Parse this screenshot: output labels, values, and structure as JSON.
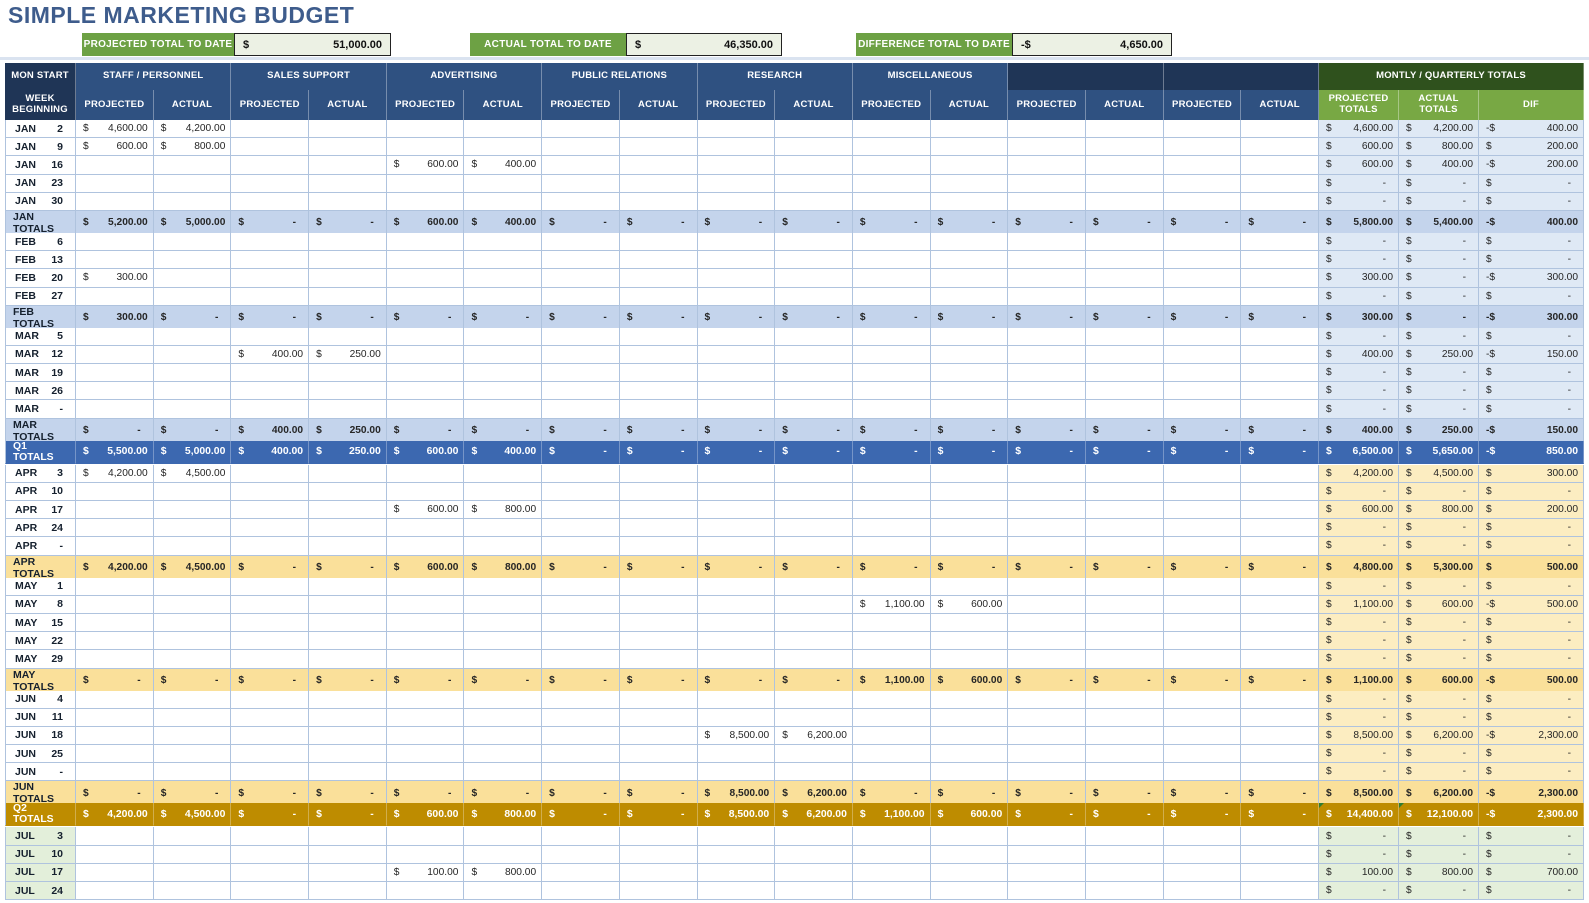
{
  "title": "SIMPLE MARKETING BUDGET",
  "summary": [
    {
      "label": "PROJECTED TOTAL TO DATE",
      "currency": "$",
      "value": "51,000.00"
    },
    {
      "label": "ACTUAL TOTAL TO DATE",
      "currency": "$",
      "value": "46,350.00"
    },
    {
      "label": "DIFFERENCE TOTAL TO DATE",
      "currency": "-$",
      "value": "4,650.00"
    }
  ],
  "colors": {
    "title_text": "#3E5C8C",
    "summary_green": "#6DA144",
    "summary_value_bg": "#ECF1E4",
    "header_dark_navy": "#1F3556",
    "header_blue": "#2F5181",
    "header_dark_green": "#2F511D",
    "header_green": "#78A844",
    "q1_light": "#DFE9F5",
    "q1_month_total": "#C4D4EC",
    "q1_quarter_total": "#3C68B0",
    "q2_light": "#FCEDC1",
    "q2_month_total": "#FAE09A",
    "q2_quarter_total": "#BE8C00",
    "q3_light": "#E4EFDB",
    "grid_border": "#AFC3DE"
  },
  "table": {
    "corner_header": "MON START",
    "week_header": "WEEK BEGINNING",
    "groups": [
      "STAFF / PERSONNEL",
      "SALES SUPPORT",
      "ADVERTISING",
      "PUBLIC RELATIONS",
      "RESEARCH",
      "MISCELLANEOUS",
      "",
      ""
    ],
    "sub_headers": [
      "PROJECTED",
      "ACTUAL"
    ],
    "totals_header": "MONTLY / QUARTERLY TOTALS",
    "totals_sub_headers": [
      "PROJECTED TOTALS",
      "ACTUAL TOTALS",
      "DIF"
    ],
    "rows": [
      {
        "type": "data",
        "month": "JAN",
        "day": "2",
        "q": 1,
        "cells": [
          "4,600.00",
          "4,200.00",
          "",
          "",
          "",
          "",
          "",
          "",
          "",
          "",
          "",
          "",
          "",
          "",
          "",
          ""
        ],
        "totals": [
          "4,600.00",
          "4,200.00",
          "-400.00"
        ]
      },
      {
        "type": "data",
        "month": "JAN",
        "day": "9",
        "q": 1,
        "cells": [
          "600.00",
          "800.00",
          "",
          "",
          "",
          "",
          "",
          "",
          "",
          "",
          "",
          "",
          "",
          "",
          "",
          ""
        ],
        "totals": [
          "600.00",
          "800.00",
          "200.00"
        ]
      },
      {
        "type": "data",
        "month": "JAN",
        "day": "16",
        "q": 1,
        "cells": [
          "",
          "",
          "",
          "",
          "600.00",
          "400.00",
          "",
          "",
          "",
          "",
          "",
          "",
          "",
          "",
          "",
          ""
        ],
        "totals": [
          "600.00",
          "400.00",
          "-200.00"
        ]
      },
      {
        "type": "data",
        "month": "JAN",
        "day": "23",
        "q": 1,
        "cells": [
          "",
          "",
          "",
          "",
          "",
          "",
          "",
          "",
          "",
          "",
          "",
          "",
          "",
          "",
          "",
          ""
        ],
        "totals": [
          "-",
          "-",
          "-"
        ]
      },
      {
        "type": "data",
        "month": "JAN",
        "day": "30",
        "q": 1,
        "cells": [
          "",
          "",
          "",
          "",
          "",
          "",
          "",
          "",
          "",
          "",
          "",
          "",
          "",
          "",
          "",
          ""
        ],
        "totals": [
          "-",
          "-",
          "-"
        ]
      },
      {
        "type": "month_total",
        "label": "JAN TOTALS",
        "q": 1,
        "cells": [
          "5,200.00",
          "5,000.00",
          "-",
          "-",
          "600.00",
          "400.00",
          "-",
          "-",
          "-",
          "-",
          "-",
          "-",
          "-",
          "-",
          "-",
          "-"
        ],
        "totals": [
          "5,800.00",
          "5,400.00",
          "-400.00"
        ]
      },
      {
        "type": "spacer"
      },
      {
        "type": "data",
        "month": "FEB",
        "day": "6",
        "q": 1,
        "cells": [
          "",
          "",
          "",
          "",
          "",
          "",
          "",
          "",
          "",
          "",
          "",
          "",
          "",
          "",
          "",
          ""
        ],
        "totals": [
          "-",
          "-",
          "-"
        ]
      },
      {
        "type": "data",
        "month": "FEB",
        "day": "13",
        "q": 1,
        "cells": [
          "",
          "",
          "",
          "",
          "",
          "",
          "",
          "",
          "",
          "",
          "",
          "",
          "",
          "",
          "",
          ""
        ],
        "totals": [
          "-",
          "-",
          "-"
        ]
      },
      {
        "type": "data",
        "month": "FEB",
        "day": "20",
        "q": 1,
        "cells": [
          "300.00",
          "",
          "",
          "",
          "",
          "",
          "",
          "",
          "",
          "",
          "",
          "",
          "",
          "",
          "",
          ""
        ],
        "totals": [
          "300.00",
          "-",
          "-300.00"
        ]
      },
      {
        "type": "data",
        "month": "FEB",
        "day": "27",
        "q": 1,
        "cells": [
          "",
          "",
          "",
          "",
          "",
          "",
          "",
          "",
          "",
          "",
          "",
          "",
          "",
          "",
          "",
          ""
        ],
        "totals": [
          "-",
          "-",
          "-"
        ]
      },
      {
        "type": "month_total",
        "label": "FEB TOTALS",
        "q": 1,
        "cells": [
          "300.00",
          "-",
          "-",
          "-",
          "-",
          "-",
          "-",
          "-",
          "-",
          "-",
          "-",
          "-",
          "-",
          "-",
          "-",
          "-"
        ],
        "totals": [
          "300.00",
          "-",
          "-300.00"
        ]
      },
      {
        "type": "spacer"
      },
      {
        "type": "data",
        "month": "MAR",
        "day": "5",
        "q": 1,
        "cells": [
          "",
          "",
          "",
          "",
          "",
          "",
          "",
          "",
          "",
          "",
          "",
          "",
          "",
          "",
          "",
          ""
        ],
        "totals": [
          "-",
          "-",
          "-"
        ]
      },
      {
        "type": "data",
        "month": "MAR",
        "day": "12",
        "q": 1,
        "cells": [
          "",
          "",
          "400.00",
          "250.00",
          "",
          "",
          "",
          "",
          "",
          "",
          "",
          "",
          "",
          "",
          "",
          ""
        ],
        "totals": [
          "400.00",
          "250.00",
          "-150.00"
        ]
      },
      {
        "type": "data",
        "month": "MAR",
        "day": "19",
        "q": 1,
        "cells": [
          "",
          "",
          "",
          "",
          "",
          "",
          "",
          "",
          "",
          "",
          "",
          "",
          "",
          "",
          "",
          ""
        ],
        "totals": [
          "-",
          "-",
          "-"
        ]
      },
      {
        "type": "data",
        "month": "MAR",
        "day": "26",
        "q": 1,
        "cells": [
          "",
          "",
          "",
          "",
          "",
          "",
          "",
          "",
          "",
          "",
          "",
          "",
          "",
          "",
          "",
          ""
        ],
        "totals": [
          "-",
          "-",
          "-"
        ]
      },
      {
        "type": "data",
        "month": "MAR",
        "day": "-",
        "q": 1,
        "cells": [
          "",
          "",
          "",
          "",
          "",
          "",
          "",
          "",
          "",
          "",
          "",
          "",
          "",
          "",
          "",
          ""
        ],
        "totals": [
          "-",
          "-",
          "-"
        ]
      },
      {
        "type": "month_total",
        "label": "MAR TOTALS",
        "q": 1,
        "cells": [
          "-",
          "-",
          "400.00",
          "250.00",
          "-",
          "-",
          "-",
          "-",
          "-",
          "-",
          "-",
          "-",
          "-",
          "-",
          "-",
          "-"
        ],
        "totals": [
          "400.00",
          "250.00",
          "-150.00"
        ]
      },
      {
        "type": "spacer"
      },
      {
        "type": "quarter_total",
        "label": "Q1 TOTALS",
        "q": 1,
        "cells": [
          "5,500.00",
          "5,000.00",
          "400.00",
          "250.00",
          "600.00",
          "400.00",
          "-",
          "-",
          "-",
          "-",
          "-",
          "-",
          "-",
          "-",
          "-",
          "-"
        ],
        "totals": [
          "6,500.00",
          "5,650.00",
          "-850.00"
        ]
      },
      {
        "type": "spacer"
      },
      {
        "type": "data",
        "month": "APR",
        "day": "3",
        "q": 2,
        "cells": [
          "4,200.00",
          "4,500.00",
          "",
          "",
          "",
          "",
          "",
          "",
          "",
          "",
          "",
          "",
          "",
          "",
          "",
          ""
        ],
        "totals": [
          "4,200.00",
          "4,500.00",
          "300.00"
        ]
      },
      {
        "type": "data",
        "month": "APR",
        "day": "10",
        "q": 2,
        "cells": [
          "",
          "",
          "",
          "",
          "",
          "",
          "",
          "",
          "",
          "",
          "",
          "",
          "",
          "",
          "",
          ""
        ],
        "totals": [
          "-",
          "-",
          "-"
        ]
      },
      {
        "type": "data",
        "month": "APR",
        "day": "17",
        "q": 2,
        "cells": [
          "",
          "",
          "",
          "",
          "600.00",
          "800.00",
          "",
          "",
          "",
          "",
          "",
          "",
          "",
          "",
          "",
          ""
        ],
        "totals": [
          "600.00",
          "800.00",
          "200.00"
        ]
      },
      {
        "type": "data",
        "month": "APR",
        "day": "24",
        "q": 2,
        "cells": [
          "",
          "",
          "",
          "",
          "",
          "",
          "",
          "",
          "",
          "",
          "",
          "",
          "",
          "",
          "",
          ""
        ],
        "totals": [
          "-",
          "-",
          "-"
        ]
      },
      {
        "type": "data",
        "month": "APR",
        "day": "-",
        "q": 2,
        "cells": [
          "",
          "",
          "",
          "",
          "",
          "",
          "",
          "",
          "",
          "",
          "",
          "",
          "",
          "",
          "",
          ""
        ],
        "totals": [
          "-",
          "-",
          "-"
        ]
      },
      {
        "type": "month_total",
        "label": "APR TOTALS",
        "q": 2,
        "cells": [
          "4,200.00",
          "4,500.00",
          "-",
          "-",
          "600.00",
          "800.00",
          "-",
          "-",
          "-",
          "-",
          "-",
          "-",
          "-",
          "-",
          "-",
          "-"
        ],
        "totals": [
          "4,800.00",
          "5,300.00",
          "500.00"
        ]
      },
      {
        "type": "spacer"
      },
      {
        "type": "data",
        "month": "MAY",
        "day": "1",
        "q": 2,
        "cells": [
          "",
          "",
          "",
          "",
          "",
          "",
          "",
          "",
          "",
          "",
          "",
          "",
          "",
          "",
          "",
          ""
        ],
        "totals": [
          "-",
          "-",
          "-"
        ]
      },
      {
        "type": "data",
        "month": "MAY",
        "day": "8",
        "q": 2,
        "cells": [
          "",
          "",
          "",
          "",
          "",
          "",
          "",
          "",
          "",
          "",
          "1,100.00",
          "600.00",
          "",
          "",
          "",
          ""
        ],
        "totals": [
          "1,100.00",
          "600.00",
          "-500.00"
        ]
      },
      {
        "type": "data",
        "month": "MAY",
        "day": "15",
        "q": 2,
        "cells": [
          "",
          "",
          "",
          "",
          "",
          "",
          "",
          "",
          "",
          "",
          "",
          "",
          "",
          "",
          "",
          ""
        ],
        "totals": [
          "-",
          "-",
          "-"
        ]
      },
      {
        "type": "data",
        "month": "MAY",
        "day": "22",
        "q": 2,
        "cells": [
          "",
          "",
          "",
          "",
          "",
          "",
          "",
          "",
          "",
          "",
          "",
          "",
          "",
          "",
          "",
          ""
        ],
        "totals": [
          "-",
          "-",
          "-"
        ]
      },
      {
        "type": "data",
        "month": "MAY",
        "day": "29",
        "q": 2,
        "cells": [
          "",
          "",
          "",
          "",
          "",
          "",
          "",
          "",
          "",
          "",
          "",
          "",
          "",
          "",
          "",
          ""
        ],
        "totals": [
          "-",
          "-",
          "-"
        ]
      },
      {
        "type": "month_total",
        "label": "MAY TOTALS",
        "q": 2,
        "cells": [
          "-",
          "-",
          "-",
          "-",
          "-",
          "-",
          "-",
          "-",
          "-",
          "-",
          "1,100.00",
          "600.00",
          "-",
          "-",
          "-",
          "-"
        ],
        "totals": [
          "1,100.00",
          "600.00",
          "-500.00"
        ]
      },
      {
        "type": "spacer"
      },
      {
        "type": "data",
        "month": "JUN",
        "day": "4",
        "q": 2,
        "cells": [
          "",
          "",
          "",
          "",
          "",
          "",
          "",
          "",
          "",
          "",
          "",
          "",
          "",
          "",
          "",
          ""
        ],
        "totals": [
          "-",
          "-",
          "-"
        ]
      },
      {
        "type": "data",
        "month": "JUN",
        "day": "11",
        "q": 2,
        "cells": [
          "",
          "",
          "",
          "",
          "",
          "",
          "",
          "",
          "",
          "",
          "",
          "",
          "",
          "",
          "",
          ""
        ],
        "totals": [
          "-",
          "-",
          "-"
        ]
      },
      {
        "type": "data",
        "month": "JUN",
        "day": "18",
        "q": 2,
        "cells": [
          "",
          "",
          "",
          "",
          "",
          "",
          "",
          "",
          "8,500.00",
          "6,200.00",
          "",
          "",
          "",
          "",
          "",
          ""
        ],
        "totals": [
          "8,500.00",
          "6,200.00",
          "-2,300.00"
        ]
      },
      {
        "type": "data",
        "month": "JUN",
        "day": "25",
        "q": 2,
        "cells": [
          "",
          "",
          "",
          "",
          "",
          "",
          "",
          "",
          "",
          "",
          "",
          "",
          "",
          "",
          "",
          ""
        ],
        "totals": [
          "-",
          "-",
          "-"
        ]
      },
      {
        "type": "data",
        "month": "JUN",
        "day": "-",
        "q": 2,
        "cells": [
          "",
          "",
          "",
          "",
          "",
          "",
          "",
          "",
          "",
          "",
          "",
          "",
          "",
          "",
          "",
          ""
        ],
        "totals": [
          "-",
          "-",
          "-"
        ]
      },
      {
        "type": "month_total",
        "label": "JUN TOTALS",
        "q": 2,
        "cells": [
          "-",
          "-",
          "-",
          "-",
          "-",
          "-",
          "-",
          "-",
          "8,500.00",
          "6,200.00",
          "-",
          "-",
          "-",
          "-",
          "-",
          "-"
        ],
        "totals": [
          "8,500.00",
          "6,200.00",
          "-2,300.00"
        ]
      },
      {
        "type": "spacer"
      },
      {
        "type": "quarter_total",
        "label": "Q2 TOTALS",
        "q": 2,
        "triangles": true,
        "cells": [
          "4,200.00",
          "4,500.00",
          "-",
          "-",
          "600.00",
          "800.00",
          "-",
          "-",
          "8,500.00",
          "6,200.00",
          "1,100.00",
          "600.00",
          "-",
          "-",
          "-",
          "-"
        ],
        "totals": [
          "14,400.00",
          "12,100.00",
          "-2,300.00"
        ]
      },
      {
        "type": "spacer"
      },
      {
        "type": "data",
        "month": "JUL",
        "day": "3",
        "q": 3,
        "cells": [
          "",
          "",
          "",
          "",
          "",
          "",
          "",
          "",
          "",
          "",
          "",
          "",
          "",
          "",
          "",
          ""
        ],
        "totals": [
          "-",
          "-",
          "-"
        ]
      },
      {
        "type": "data",
        "month": "JUL",
        "day": "10",
        "q": 3,
        "cells": [
          "",
          "",
          "",
          "",
          "",
          "",
          "",
          "",
          "",
          "",
          "",
          "",
          "",
          "",
          "",
          ""
        ],
        "totals": [
          "-",
          "-",
          "-"
        ]
      },
      {
        "type": "data",
        "month": "JUL",
        "day": "17",
        "q": 3,
        "cells": [
          "",
          "",
          "",
          "",
          "100.00",
          "800.00",
          "",
          "",
          "",
          "",
          "",
          "",
          "",
          "",
          "",
          ""
        ],
        "totals": [
          "100.00",
          "800.00",
          "700.00"
        ]
      },
      {
        "type": "data",
        "month": "JUL",
        "day": "24",
        "q": 3,
        "cells": [
          "",
          "",
          "",
          "",
          "",
          "",
          "",
          "",
          "",
          "",
          "",
          "",
          "",
          "",
          "",
          ""
        ],
        "totals": [
          "-",
          "-",
          "-"
        ]
      }
    ]
  }
}
